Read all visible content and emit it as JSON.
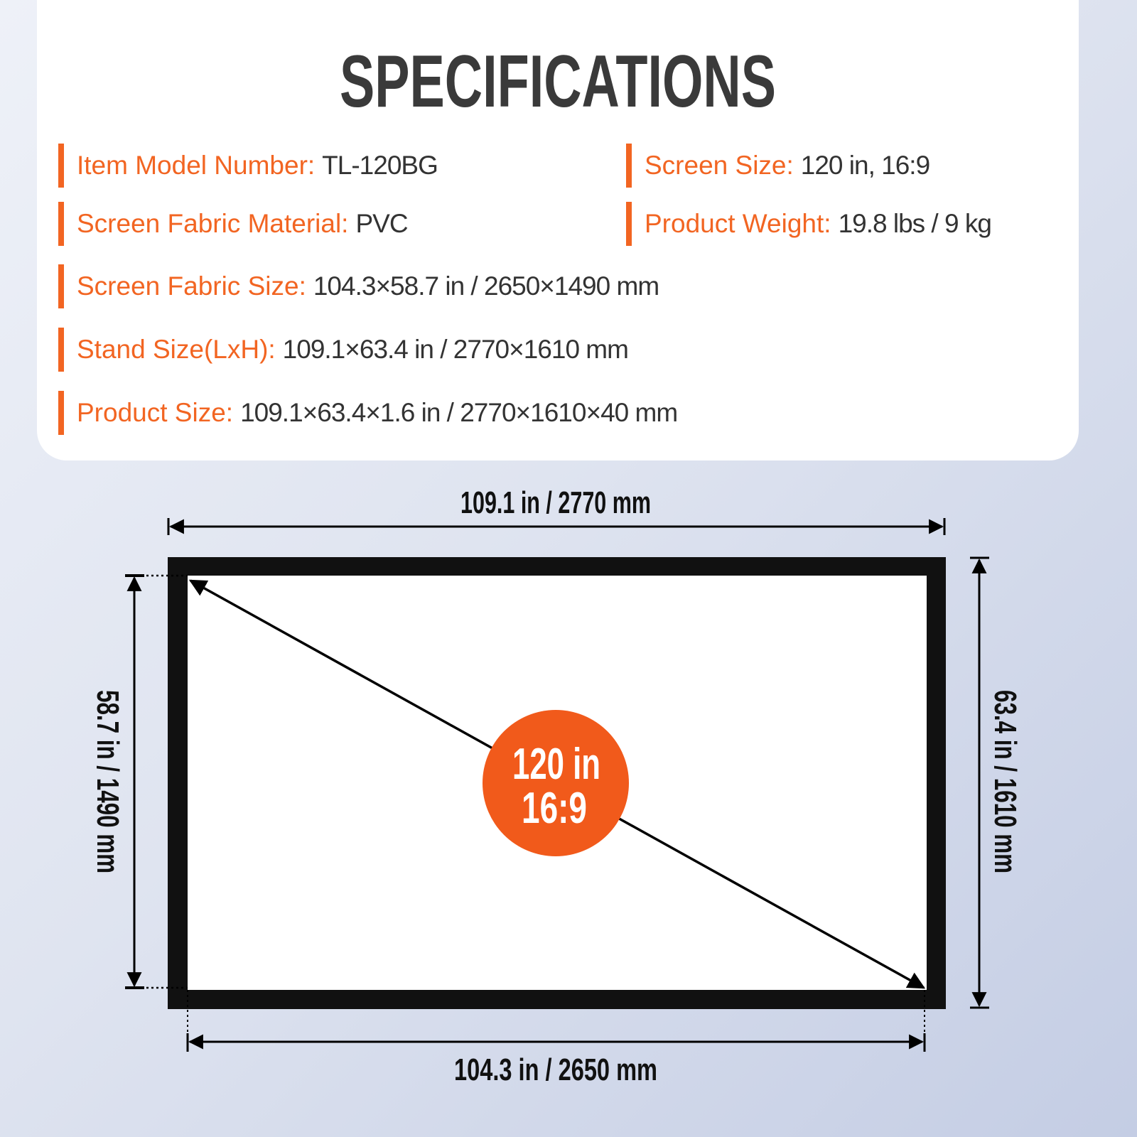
{
  "title": "SPECIFICATIONS",
  "accent_color": "#f26522",
  "specs": [
    {
      "label": "Item Model Number:",
      "value": "TL-120BG"
    },
    {
      "label": "Screen Size:",
      "value": "120 in, 16:9"
    },
    {
      "label": "Screen Fabric Material:",
      "value": "PVC"
    },
    {
      "label": "Product Weight:",
      "value": "19.8 lbs / 9 kg"
    },
    {
      "label": "Screen Fabric Size:",
      "value": "104.3×58.7 in / 2650×1490 mm"
    },
    {
      "label": "Stand Size(LxH):",
      "value": "109.1×63.4 in / 2770×1610 mm"
    },
    {
      "label": "Product Size:",
      "value": "109.1×63.4×1.6 in / 2770×1610×40 mm"
    }
  ],
  "diagram": {
    "top_width": "109.1 in / 2770 mm",
    "bottom_width": "104.3 in / 2650 mm",
    "left_height": "58.7 in / 1490 mm",
    "right_height": "63.4 in / 1610 mm",
    "badge_line1": "120 in",
    "badge_line2": "16:9",
    "badge_color": "#f15a1b"
  }
}
